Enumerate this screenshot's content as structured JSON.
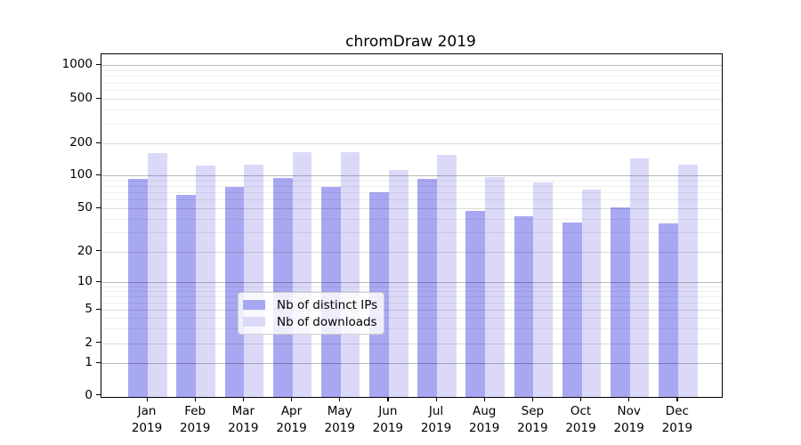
{
  "title": "chromDraw 2019",
  "chart_data": {
    "type": "bar",
    "title": "chromDraw 2019",
    "categories": [
      "Jan 2019",
      "Feb 2019",
      "Mar 2019",
      "Apr 2019",
      "May 2019",
      "Jun 2019",
      "Jul 2019",
      "Aug 2019",
      "Sep 2019",
      "Oct 2019",
      "Nov 2019",
      "Dec 2019"
    ],
    "series": [
      {
        "name": "Nb of distinct IPs",
        "color": "#a8a8f2",
        "values": [
          92,
          66,
          79,
          94,
          78,
          70,
          93,
          47,
          42,
          37,
          51,
          36
        ]
      },
      {
        "name": "Nb of downloads",
        "color": "#dadaf8",
        "values": [
          163,
          124,
          125,
          165,
          165,
          113,
          155,
          97,
          86,
          74,
          144,
          127
        ]
      }
    ],
    "xlabel": "",
    "ylabel": "",
    "yscale": "log-with-zero",
    "yticks": [
      0,
      1,
      2,
      5,
      10,
      20,
      50,
      100,
      200,
      500,
      1000
    ],
    "ylim": [
      0,
      1000
    ],
    "grid": true,
    "legend_position": "lower-center"
  }
}
